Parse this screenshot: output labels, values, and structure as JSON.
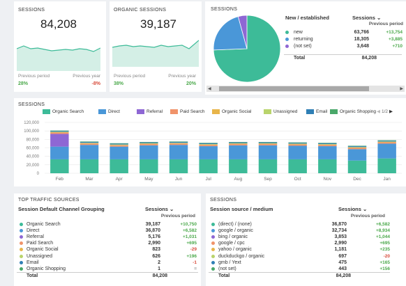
{
  "card_sessions": {
    "title": "SESSIONS",
    "value": "84,208",
    "left_label": "Previous period",
    "right_label": "Previous year",
    "left_pct": "28%",
    "right_pct": "-8%"
  },
  "card_organic": {
    "title": "ORGANIC SESSIONS",
    "value": "39,187",
    "left_label": "Previous period",
    "right_label": "Previous year",
    "left_pct": "38%",
    "right_pct": "20%"
  },
  "pie_card": {
    "title": "SESSIONS",
    "col_label": "New / established",
    "col_sessions": "Sessions",
    "prev_label": "Previous period",
    "rows": [
      {
        "label": "new",
        "value": "63,766",
        "change": "+13,754",
        "color": "#3dbb98"
      },
      {
        "label": "returning",
        "value": "18,305",
        "change": "+3,885",
        "color": "#4a97d8"
      },
      {
        "label": "(not set)",
        "value": "3,648",
        "change": "+710",
        "color": "#8e67d4"
      }
    ],
    "total_label": "Total",
    "total_value": "84,208",
    "slices": [
      63766,
      18305,
      3648
    ]
  },
  "main_chart": {
    "title": "SESSIONS",
    "pager": "1/2",
    "legend": [
      {
        "name": "Organic Search",
        "color": "#3dbb98"
      },
      {
        "name": "Direct",
        "color": "#4a97d8"
      },
      {
        "name": "Referral",
        "color": "#8e67d4"
      },
      {
        "name": "Paid Search",
        "color": "#f0936a"
      },
      {
        "name": "Organic Social",
        "color": "#e8b54a"
      },
      {
        "name": "Unassigned",
        "color": "#b9d46c"
      },
      {
        "name": "Email",
        "color": "#2f7fb5"
      },
      {
        "name": "Organic Shopping",
        "color": "#4aa86a"
      }
    ]
  },
  "chart_data": {
    "type": "bar",
    "categories": [
      "Feb",
      "Mar",
      "Apr",
      "May",
      "Jun",
      "Jul",
      "Aug",
      "Sep",
      "Oct",
      "Nov",
      "Dec",
      "Jan"
    ],
    "ylim": [
      0,
      120000
    ],
    "yticks": [
      "120,000",
      "100,000",
      "80,000",
      "60,000",
      "40,000",
      "20,000",
      "0"
    ],
    "series": [
      {
        "name": "Organic Search",
        "values": [
          33000,
          33000,
          33000,
          33000,
          33000,
          33000,
          33000,
          33000,
          33000,
          33000,
          30000,
          35000
        ]
      },
      {
        "name": "Direct",
        "values": [
          30000,
          34000,
          30000,
          33000,
          34000,
          31000,
          33000,
          33000,
          32000,
          31000,
          27000,
          35000
        ]
      },
      {
        "name": "Referral",
        "values": [
          30000,
          0,
          0,
          0,
          0,
          0,
          0,
          0,
          0,
          0,
          0,
          0
        ]
      },
      {
        "name": "Paid Search",
        "values": [
          3000,
          3000,
          3000,
          3000,
          3000,
          3000,
          3000,
          3000,
          3000,
          3000,
          3000,
          3000
        ]
      },
      {
        "name": "Organic Social",
        "values": [
          1000,
          1000,
          1000,
          1000,
          1000,
          1000,
          1000,
          1000,
          1000,
          1000,
          1000,
          1000
        ]
      },
      {
        "name": "Unassigned",
        "values": [
          1000,
          1000,
          1000,
          1000,
          1000,
          1000,
          1000,
          1000,
          1000,
          1000,
          1000,
          1000
        ]
      },
      {
        "name": "Email",
        "values": [
          2000,
          2000,
          2000,
          2000,
          2000,
          2000,
          2000,
          2000,
          2000,
          2000,
          2000,
          2000
        ]
      },
      {
        "name": "Organic Shopping",
        "values": [
          1000,
          1000,
          1000,
          1000,
          1000,
          1000,
          1000,
          1000,
          1000,
          1000,
          1000,
          1000
        ]
      }
    ]
  },
  "traffic_table": {
    "title": "TOP TRAFFIC SOURCES",
    "col_label": "Session Default Channel Grouping",
    "col_sessions": "Sessions",
    "prev_label": "Previous period",
    "rows": [
      {
        "label": "Organic Search",
        "value": "39,187",
        "change": "+10,750",
        "color": "#3dbb98",
        "cls": "green"
      },
      {
        "label": "Direct",
        "value": "36,870",
        "change": "+6,582",
        "color": "#4a97d8",
        "cls": "green"
      },
      {
        "label": "Referral",
        "value": "5,176",
        "change": "+1,031",
        "color": "#8e67d4",
        "cls": "green"
      },
      {
        "label": "Paid Search",
        "value": "2,990",
        "change": "+695",
        "color": "#f0936a",
        "cls": "green"
      },
      {
        "label": "Organic Social",
        "value": "823",
        "change": "-29",
        "color": "#e8b54a",
        "cls": "red"
      },
      {
        "label": "Unassigned",
        "value": "626",
        "change": "+196",
        "color": "#b9d46c",
        "cls": "green"
      },
      {
        "label": "Email",
        "value": "2",
        "change": "-1",
        "color": "#2f7fb5",
        "cls": "red"
      },
      {
        "label": "Organic Shopping",
        "value": "1",
        "change": "=",
        "color": "#4aa86a",
        "cls": "gray"
      }
    ],
    "total_label": "Total",
    "total_value": "84,208"
  },
  "source_table": {
    "title": "SESSIONS",
    "col_label": "Session source / medium",
    "col_sessions": "Sessions",
    "prev_label": "Previous period",
    "rows": [
      {
        "label": "(direct) / (none)",
        "value": "36,870",
        "change": "+6,582",
        "color": "#3dbb98",
        "cls": "green"
      },
      {
        "label": "google / organic",
        "value": "32,734",
        "change": "+8,934",
        "color": "#4a97d8",
        "cls": "green"
      },
      {
        "label": "bing / organic",
        "value": "3,853",
        "change": "+1,044",
        "color": "#8e67d4",
        "cls": "green"
      },
      {
        "label": "google / cpc",
        "value": "2,990",
        "change": "+695",
        "color": "#f0936a",
        "cls": "green"
      },
      {
        "label": "yahoo / organic",
        "value": "1,181",
        "change": "+235",
        "color": "#e8b54a",
        "cls": "green"
      },
      {
        "label": "duckduckgo / organic",
        "value": "697",
        "change": "-20",
        "color": "#b9d46c",
        "cls": "red"
      },
      {
        "label": "gmb / Yext",
        "value": "475",
        "change": "+165",
        "color": "#2f7fb5",
        "cls": "green"
      },
      {
        "label": "(not set)",
        "value": "443",
        "change": "+156",
        "color": "#4aa86a",
        "cls": "green"
      }
    ],
    "total_label": "Total",
    "total_value": "84,208"
  }
}
